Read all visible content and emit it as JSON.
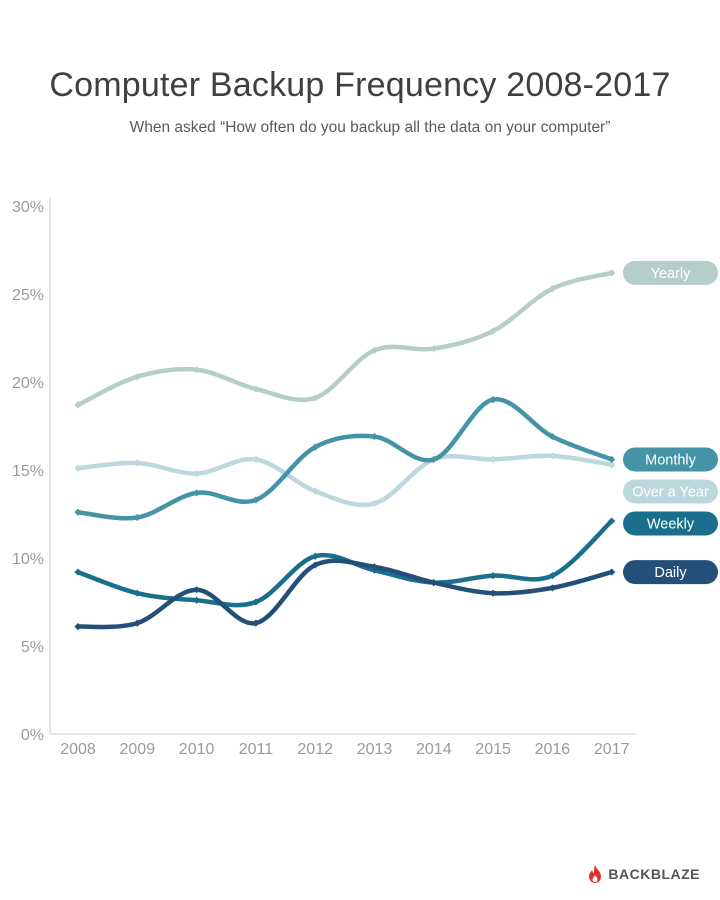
{
  "chart_data": {
    "type": "line",
    "title": "Computer Backup Frequency 2008-2017",
    "subtitle": "When asked “How often do you backup all the data on your computer”",
    "x": [
      "2008",
      "2009",
      "2010",
      "2011",
      "2012",
      "2013",
      "2014",
      "2015",
      "2016",
      "2017"
    ],
    "y_ticks": [
      "0%",
      "5%",
      "10%",
      "15%",
      "20%",
      "25%",
      "30%"
    ],
    "ylim": [
      0,
      30
    ],
    "grid": false,
    "legend": "right-end labels",
    "series": [
      {
        "name": "Yearly",
        "color": "#b6cec9",
        "label_text_color": "#ffffff",
        "values": [
          18.7,
          20.3,
          20.7,
          19.6,
          19.1,
          21.8,
          21.9,
          22.9,
          25.3,
          26.2
        ]
      },
      {
        "name": "Over a Year",
        "color": "#bcd8de",
        "label_text_color": "#ffffff",
        "values": [
          15.1,
          15.4,
          14.8,
          15.6,
          13.8,
          13.1,
          15.6,
          15.6,
          15.8,
          15.3
        ]
      },
      {
        "name": "Monthly",
        "color": "#4593a6",
        "label_text_color": "#ffffff",
        "values": [
          12.6,
          12.3,
          13.7,
          13.3,
          16.3,
          16.9,
          15.6,
          19.0,
          16.9,
          15.6
        ]
      },
      {
        "name": "Weekly",
        "color": "#1a6f8d",
        "label_text_color": "#ffffff",
        "values": [
          9.2,
          8.0,
          7.6,
          7.5,
          10.1,
          9.3,
          8.6,
          9.0,
          9.0,
          12.1
        ]
      },
      {
        "name": "Daily",
        "color": "#234f78",
        "label_text_color": "#ffffff",
        "values": [
          6.1,
          6.3,
          8.2,
          6.3,
          9.6,
          9.5,
          8.6,
          8.0,
          8.3,
          9.2
        ]
      }
    ]
  },
  "brand": {
    "name": "BACKBLAZE",
    "color": "#e2312b"
  }
}
